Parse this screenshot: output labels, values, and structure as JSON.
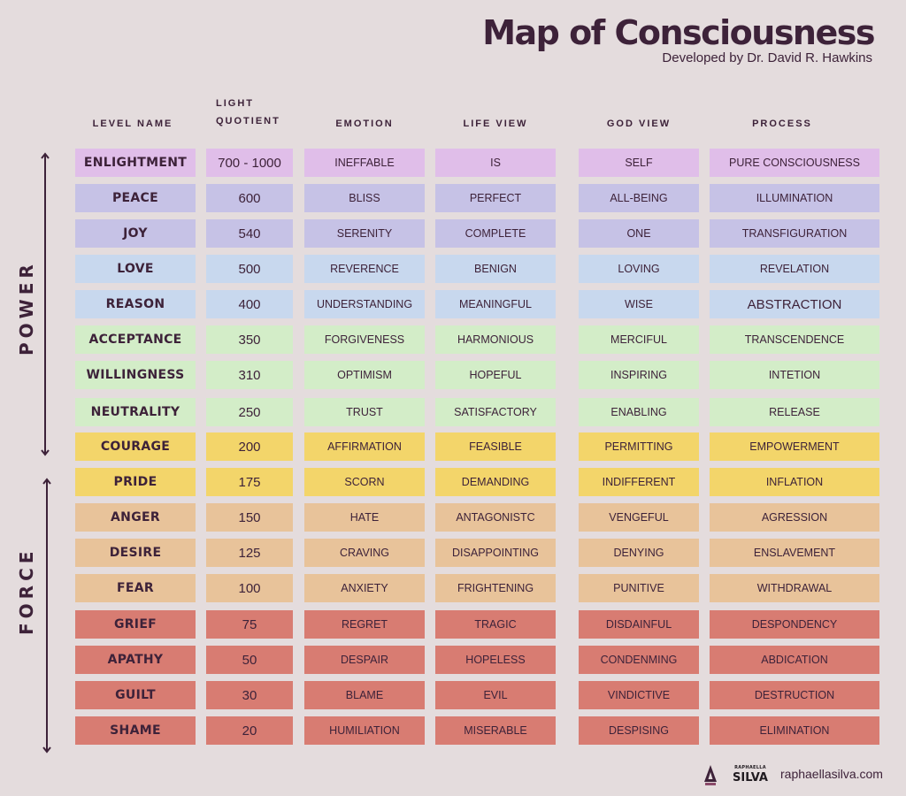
{
  "header": {
    "title": "Map of Consciousness",
    "subtitle": "Developed by Dr. David R. Hawkins"
  },
  "columns": {
    "level_name": "LEVEL NAME",
    "light_quotient_line1": "LIGHT",
    "light_quotient_line2": "QUOTIENT",
    "emotion": "EMOTION",
    "life_view": "LIFE VIEW",
    "god_view": "GOD VIEW",
    "process": "PROCESS"
  },
  "side_labels": {
    "power": "POWER",
    "force": "FORCE"
  },
  "colors": {
    "background": "#e4dcdd",
    "text": "#3d2239",
    "enlightenment": "#e0bee9",
    "peace_joy": "#c6c2e6",
    "love_reason": "#c8d8ee",
    "green": "#d3edc8",
    "yellow": "#f3d56a",
    "tan": "#e8c39a",
    "red": "#d87c72"
  },
  "rows": [
    {
      "level": "ENLIGHTMENT",
      "lq": "700 - 1000",
      "emotion": "INEFFABLE",
      "life_view": "IS",
      "god_view": "SELF",
      "process": "PURE CONSCIOUSNESS",
      "color": "#e0bee9"
    },
    {
      "level": "PEACE",
      "lq": "600",
      "emotion": "BLISS",
      "life_view": "PERFECT",
      "god_view": "ALL-BEING",
      "process": "ILLUMINATION",
      "color": "#c6c2e6"
    },
    {
      "level": "JOY",
      "lq": "540",
      "emotion": "SERENITY",
      "life_view": "COMPLETE",
      "god_view": "ONE",
      "process": "TRANSFIGURATION",
      "color": "#c6c2e6"
    },
    {
      "level": "LOVE",
      "lq": "500",
      "emotion": "REVERENCE",
      "life_view": "BENIGN",
      "god_view": "LOVING",
      "process": "REVELATION",
      "color": "#c8d8ee"
    },
    {
      "level": "REASON",
      "lq": "400",
      "emotion": "UNDERSTANDING",
      "life_view": "MEANINGFUL",
      "god_view": "WISE",
      "process": "ABSTRACTION",
      "color": "#c8d8ee"
    },
    {
      "level": "ACCEPTANCE",
      "lq": "350",
      "emotion": "FORGIVENESS",
      "life_view": "HARMONIOUS",
      "god_view": "MERCIFUL",
      "process": "TRANSCENDENCE",
      "color": "#d3edc8"
    },
    {
      "level": "WILLINGNESS",
      "lq": "310",
      "emotion": "OPTIMISM",
      "life_view": "HOPEFUL",
      "god_view": "INSPIRING",
      "process": "INTETION",
      "color": "#d3edc8"
    },
    {
      "level": "NEUTRALITY",
      "lq": "250",
      "emotion": "TRUST",
      "life_view": "SATISFACTORY",
      "god_view": "ENABLING",
      "process": "RELEASE",
      "color": "#d3edc8"
    },
    {
      "level": "COURAGE",
      "lq": "200",
      "emotion": "AFFIRMATION",
      "life_view": "FEASIBLE",
      "god_view": "PERMITTING",
      "process": "EMPOWERMENT",
      "color": "#f3d56a"
    },
    {
      "level": "PRIDE",
      "lq": "175",
      "emotion": "SCORN",
      "life_view": "DEMANDING",
      "god_view": "INDIFFERENT",
      "process": "INFLATION",
      "color": "#f3d56a"
    },
    {
      "level": "ANGER",
      "lq": "150",
      "emotion": "HATE",
      "life_view": "ANTAGONISTC",
      "god_view": "VENGEFUL",
      "process": "AGRESSION",
      "color": "#e8c39a"
    },
    {
      "level": "DESIRE",
      "lq": "125",
      "emotion": "CRAVING",
      "life_view": "DISAPPOINTING",
      "god_view": "DENYING",
      "process": "ENSLAVEMENT",
      "color": "#e8c39a"
    },
    {
      "level": "FEAR",
      "lq": "100",
      "emotion": "ANXIETY",
      "life_view": "FRIGHTENING",
      "god_view": "PUNITIVE",
      "process": "WITHDRAWAL",
      "color": "#e8c39a"
    },
    {
      "level": "GRIEF",
      "lq": "75",
      "emotion": "REGRET",
      "life_view": "TRAGIC",
      "god_view": "DISDAINFUL",
      "process": "DESPONDENCY",
      "color": "#d87c72"
    },
    {
      "level": "APATHY",
      "lq": "50",
      "emotion": "DESPAIR",
      "life_view": "HOPELESS",
      "god_view": "CONDENMING",
      "process": "ABDICATION",
      "color": "#d87c72"
    },
    {
      "level": "GUILT",
      "lq": "30",
      "emotion": "BLAME",
      "life_view": "EVIL",
      "god_view": "VINDICTIVE",
      "process": "DESTRUCTION",
      "color": "#d87c72"
    },
    {
      "level": "SHAME",
      "lq": "20",
      "emotion": "HUMILIATION",
      "life_view": "MISERABLE",
      "god_view": "DESPISING",
      "process": "ELIMINATION",
      "color": "#d87c72"
    }
  ],
  "footer": {
    "logo_icon": "a-triangle-logo-icon",
    "brand_small": "RAPHAELLA",
    "brand_big": "SILVA",
    "url": "raphaellasilva.com"
  }
}
